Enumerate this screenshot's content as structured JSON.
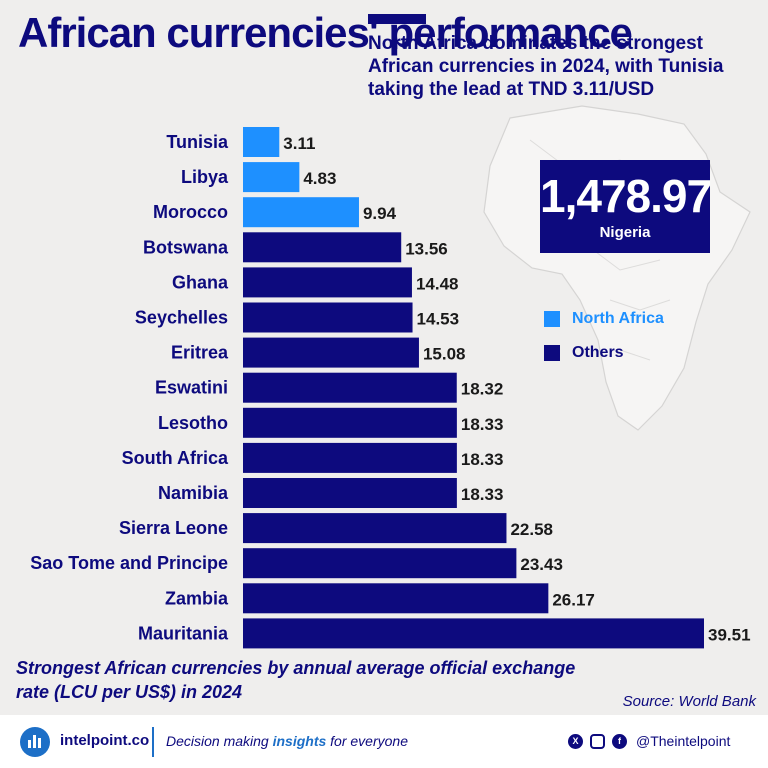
{
  "header": {
    "title": "African currencies' performance",
    "subtitle": "North Africa dominates the strongest African currencies in 2024, with Tunisia taking the lead at TND 3.11/USD"
  },
  "callout": {
    "value": "1,478.97",
    "label": "Nigeria"
  },
  "colors": {
    "north_africa": "#1e90ff",
    "others": "#0d0a7e",
    "background": "#efeeed",
    "brand": "#1d6fc7"
  },
  "chart_data": {
    "type": "bar",
    "orientation": "horizontal",
    "categories": [
      "Tunisia",
      "Libya",
      "Morocco",
      "Botswana",
      "Ghana",
      "Seychelles",
      "Eritrea",
      "Eswatini",
      "Lesotho",
      "South Africa",
      "Namibia",
      "Sierra Leone",
      "Sao Tome and Principe",
      "Zambia",
      "Mauritania"
    ],
    "values": [
      3.11,
      4.83,
      9.94,
      13.56,
      14.48,
      14.53,
      15.08,
      18.32,
      18.33,
      18.33,
      18.33,
      22.58,
      23.43,
      26.17,
      39.51
    ],
    "value_labels": [
      "3.11",
      "4.83",
      "9.94",
      "13.56",
      "14.48",
      "14.53",
      "15.08",
      "18.32",
      "18.33",
      "18.33",
      "18.33",
      "22.58",
      "23.43",
      "26.17",
      "39.51"
    ],
    "groups": [
      "North Africa",
      "North Africa",
      "North Africa",
      "Others",
      "Others",
      "Others",
      "Others",
      "Others",
      "Others",
      "Others",
      "Others",
      "Others",
      "Others",
      "Others",
      "Others"
    ],
    "legend": [
      {
        "label": "North Africa",
        "color": "#1e90ff"
      },
      {
        "label": "Others",
        "color": "#0d0a7e"
      }
    ],
    "legend_position": "right",
    "grid": false,
    "xlim": [
      0,
      39.51
    ]
  },
  "note": "Strongest African currencies by annual average official exchange rate (LCU per US$) in 2024",
  "source": "Source: World Bank",
  "footer": {
    "brand": "intelpoint.co",
    "tagline_prefix": "Decision making ",
    "tagline_emphasis": "insights",
    "tagline_suffix": " for everyone",
    "handle": "@Theintelpoint",
    "icons": [
      "logo-bars-icon",
      "x-icon",
      "instagram-icon",
      "facebook-icon"
    ]
  }
}
